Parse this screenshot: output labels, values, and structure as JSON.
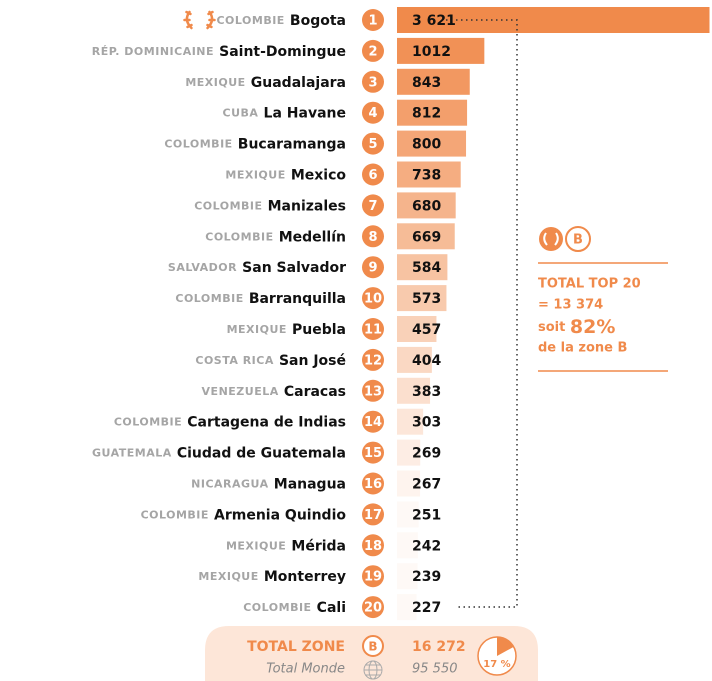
{
  "chart_data": {
    "type": "bar",
    "orientation": "horizontal",
    "color": "#f08a4b",
    "xlim": [
      0,
      3650
    ],
    "categories": [
      "Bogota",
      "Saint-Domingue",
      "Guadalajara",
      "La Havane",
      "Bucaramanga",
      "Mexico",
      "Manizales",
      "Medellín",
      "San Salvador",
      "Barranquilla",
      "Puebla",
      "San José",
      "Caracas",
      "Cartagena de Indias",
      "Ciudad de Guatemala",
      "Managua",
      "Armenia Quindio",
      "Mérida",
      "Monterrey",
      "Cali"
    ],
    "countries": [
      "COLOMBIE",
      "RÉP. DOMINICAINE",
      "MEXIQUE",
      "CUBA",
      "COLOMBIE",
      "MEXIQUE",
      "COLOMBIE",
      "COLOMBIE",
      "SALVADOR",
      "COLOMBIE",
      "MEXIQUE",
      "COSTA RICA",
      "VENEZUELA",
      "COLOMBIE",
      "GUATEMALA",
      "NICARAGUA",
      "COLOMBIE",
      "MEXIQUE",
      "MEXIQUE",
      "COLOMBIE"
    ],
    "ranks": [
      1,
      2,
      3,
      4,
      5,
      6,
      7,
      8,
      9,
      10,
      11,
      12,
      13,
      14,
      15,
      16,
      17,
      18,
      19,
      20
    ],
    "values": [
      3621,
      1012,
      843,
      812,
      800,
      738,
      680,
      669,
      584,
      573,
      457,
      404,
      383,
      303,
      269,
      267,
      251,
      242,
      239,
      227
    ],
    "value_labels": [
      "3 621",
      "1012",
      "843",
      "812",
      "800",
      "738",
      "680",
      "669",
      "584",
      "573",
      "457",
      "404",
      "383",
      "303",
      "269",
      "267",
      "251",
      "242",
      "239",
      "227"
    ],
    "annotation": {
      "badge": "B",
      "title": "TOTAL TOP 20",
      "total": "= 13 374",
      "share_prefix": "soit",
      "share": "82%",
      "share_suffix": "de la zone B"
    },
    "footer": {
      "label": "TOTAL ZONE",
      "badge": "B",
      "total": "16 272",
      "world_label": "Total Monde",
      "world_total": "95 550",
      "pie_value": 17,
      "pie_label": "17 %"
    }
  }
}
